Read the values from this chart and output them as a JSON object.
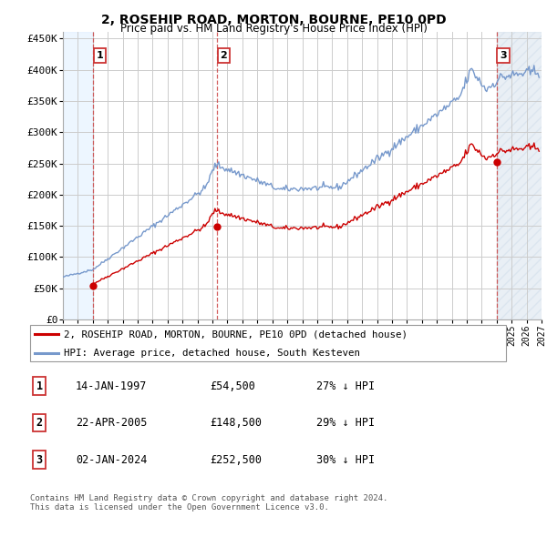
{
  "title1": "2, ROSEHIP ROAD, MORTON, BOURNE, PE10 0PD",
  "title2": "Price paid vs. HM Land Registry's House Price Index (HPI)",
  "legend_line1": "2, ROSEHIP ROAD, MORTON, BOURNE, PE10 0PD (detached house)",
  "legend_line2": "HPI: Average price, detached house, South Kesteven",
  "sale1_date": "14-JAN-1997",
  "sale1_price": 54500,
  "sale1_hpi": "27% ↓ HPI",
  "sale2_date": "22-APR-2005",
  "sale2_price": 148500,
  "sale2_hpi": "29% ↓ HPI",
  "sale3_date": "02-JAN-2024",
  "sale3_price": 252500,
  "sale3_hpi": "30% ↓ HPI",
  "footnote1": "Contains HM Land Registry data © Crown copyright and database right 2024.",
  "footnote2": "This data is licensed under the Open Government Licence v3.0.",
  "red_color": "#cc0000",
  "blue_color": "#7799cc",
  "bg_light_blue": "#ddeeff",
  "grid_color": "#cccccc",
  "ylim_max": 460000,
  "xmin": 1995.0,
  "xmax": 2027.0,
  "sale1_x": 1997.04,
  "sale2_x": 2005.31,
  "sale3_x": 2024.01
}
